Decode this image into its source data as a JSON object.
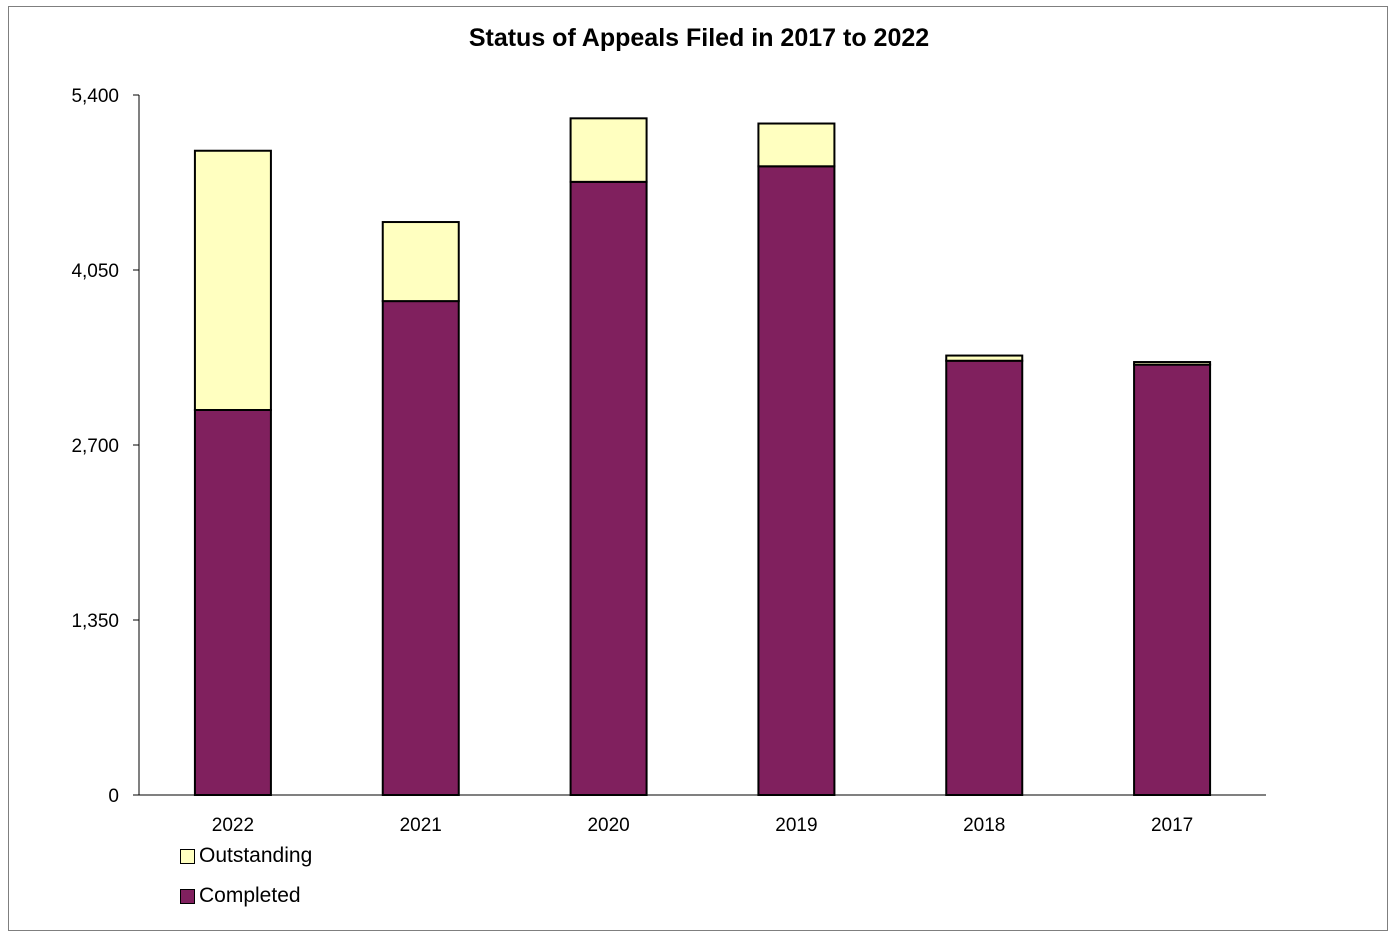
{
  "chart_data": {
    "type": "bar",
    "stacked": true,
    "title": "Status of Appeals Filed in 2017 to 2022",
    "xlabel": "",
    "ylabel": "",
    "categories": [
      "2022",
      "2021",
      "2020",
      "2019",
      "2018",
      "2017"
    ],
    "series": [
      {
        "name": "Completed",
        "color": "#80205e",
        "values": [
          2970,
          3810,
          4730,
          4850,
          3350,
          3320
        ]
      },
      {
        "name": "Outstanding",
        "color": "#ffffc0",
        "values": [
          2000,
          610,
          490,
          330,
          40,
          20
        ]
      }
    ],
    "ylim": [
      0,
      5400
    ],
    "yticks": [
      0,
      1350,
      2700,
      4050,
      5400
    ],
    "ytick_labels": [
      "0",
      "1,350",
      "2,700",
      "4,050",
      "5,400"
    ],
    "grid": false,
    "legend": {
      "placement": "bottom-left",
      "entries": [
        {
          "name": "Outstanding",
          "color": "#ffffc0"
        },
        {
          "name": "Completed",
          "color": "#80205e"
        }
      ]
    }
  }
}
